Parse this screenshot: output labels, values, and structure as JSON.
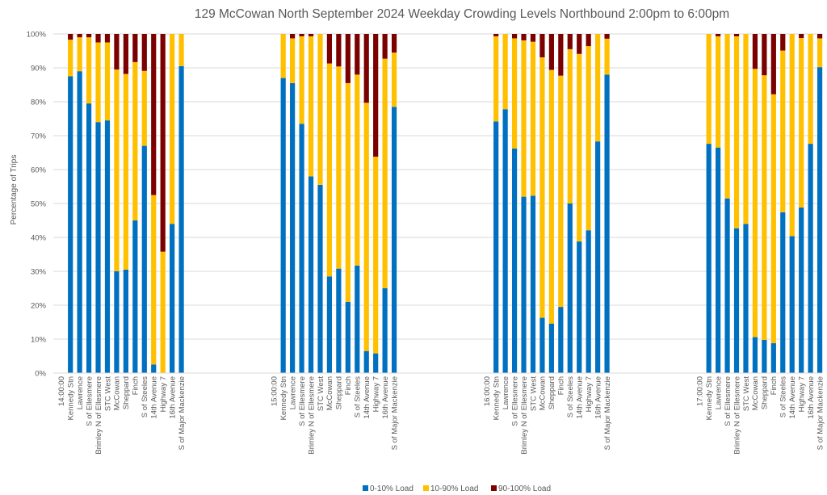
{
  "chart_data": {
    "type": "bar",
    "stacked": true,
    "normalized": true,
    "title": "129 McCowan North September 2024  Weekday Crowding Levels Northbound 2:00pm to 6:00pm",
    "xlabel": "",
    "ylabel": "Percentage of Trips",
    "ylim": [
      0,
      100
    ],
    "yticks": [
      "0%",
      "10%",
      "20%",
      "30%",
      "40%",
      "50%",
      "60%",
      "70%",
      "80%",
      "90%",
      "100%"
    ],
    "grid": true,
    "legend_position": "bottom",
    "stops": [
      "Kennedy Stn",
      "Lawrence",
      "S of Ellesmere",
      "Brimley N of Ellesmere",
      "STC West",
      "McCowan",
      "Sheppard",
      "Finch",
      "S of Steeles",
      "14th Avenue",
      "Highway 7",
      "16th Avenue",
      "S of Major Mackenzie"
    ],
    "series_meta": [
      {
        "name": "0-10% Load",
        "color": "#0070C0"
      },
      {
        "name": "10-90% Load",
        "color": "#FFC000"
      },
      {
        "name": "90-100% Load",
        "color": "#7B0000"
      }
    ],
    "groups": [
      {
        "label": "14:00:00",
        "series": [
          {
            "name": "0-10% Load",
            "values": [
              87.5,
              89.0,
              79.5,
              74.0,
              74.5,
              30.0,
              30.5,
              45.0,
              67.0,
              2.5,
              0.0,
              44.0,
              90.5
            ]
          },
          {
            "name": "10-90% Load",
            "values": [
              10.8,
              10.0,
              19.5,
              23.5,
              23.0,
              59.5,
              57.7,
              46.7,
              22.1,
              50.0,
              35.8,
              56.0,
              9.5
            ]
          },
          {
            "name": "90-100% Load",
            "values": [
              1.7,
              1.0,
              1.0,
              2.5,
              2.5,
              10.5,
              11.8,
              8.3,
              10.9,
              47.5,
              64.2,
              0.0,
              0.0
            ]
          }
        ]
      },
      {
        "label": "15:00:00",
        "series": [
          {
            "name": "0-10% Load",
            "values": [
              87.0,
              85.5,
              73.5,
              58.0,
              55.5,
              28.5,
              30.8,
              21.0,
              31.7,
              6.5,
              5.8,
              25.0,
              78.5
            ]
          },
          {
            "name": "10-90% Load",
            "values": [
              13.0,
              13.2,
              25.8,
              41.3,
              44.5,
              62.8,
              59.6,
              64.5,
              56.3,
              73.2,
              58.0,
              67.7,
              16.0
            ]
          },
          {
            "name": "90-100% Load",
            "values": [
              0.0,
              1.3,
              0.7,
              0.7,
              0.0,
              8.7,
              9.6,
              14.5,
              12.0,
              20.3,
              36.2,
              7.3,
              5.5
            ]
          }
        ]
      },
      {
        "label": "16:00:00",
        "series": [
          {
            "name": "0-10% Load",
            "values": [
              74.2,
              77.8,
              66.2,
              52.0,
              52.3,
              16.3,
              14.6,
              19.5,
              50.0,
              38.8,
              42.1,
              68.3,
              88.0
            ]
          },
          {
            "name": "10-90% Load",
            "values": [
              25.1,
              22.2,
              32.5,
              46.1,
              45.4,
              76.8,
              74.8,
              68.2,
              45.5,
              55.3,
              54.3,
              31.7,
              10.6
            ]
          },
          {
            "name": "90-100% Load",
            "values": [
              0.7,
              0.0,
              1.3,
              1.9,
              2.3,
              6.9,
              10.6,
              12.3,
              4.5,
              5.9,
              3.6,
              0.0,
              1.4
            ]
          }
        ]
      },
      {
        "label": "17:00:00",
        "series": [
          {
            "name": "0-10% Load",
            "values": [
              67.6,
              66.5,
              51.5,
              42.7,
              44.0,
              10.6,
              9.8,
              8.8,
              47.4,
              40.4,
              48.8,
              67.6,
              90.2
            ]
          },
          {
            "name": "10-90% Load",
            "values": [
              32.4,
              32.8,
              48.5,
              56.6,
              56.0,
              79.1,
              78.0,
              73.4,
              47.7,
              59.6,
              50.0,
              32.4,
              8.5
            ]
          },
          {
            "name": "90-100% Load",
            "values": [
              0.0,
              0.7,
              0.0,
              0.7,
              0.0,
              10.3,
              12.2,
              17.8,
              4.9,
              0.0,
              1.2,
              0.0,
              1.3
            ]
          }
        ]
      }
    ]
  }
}
